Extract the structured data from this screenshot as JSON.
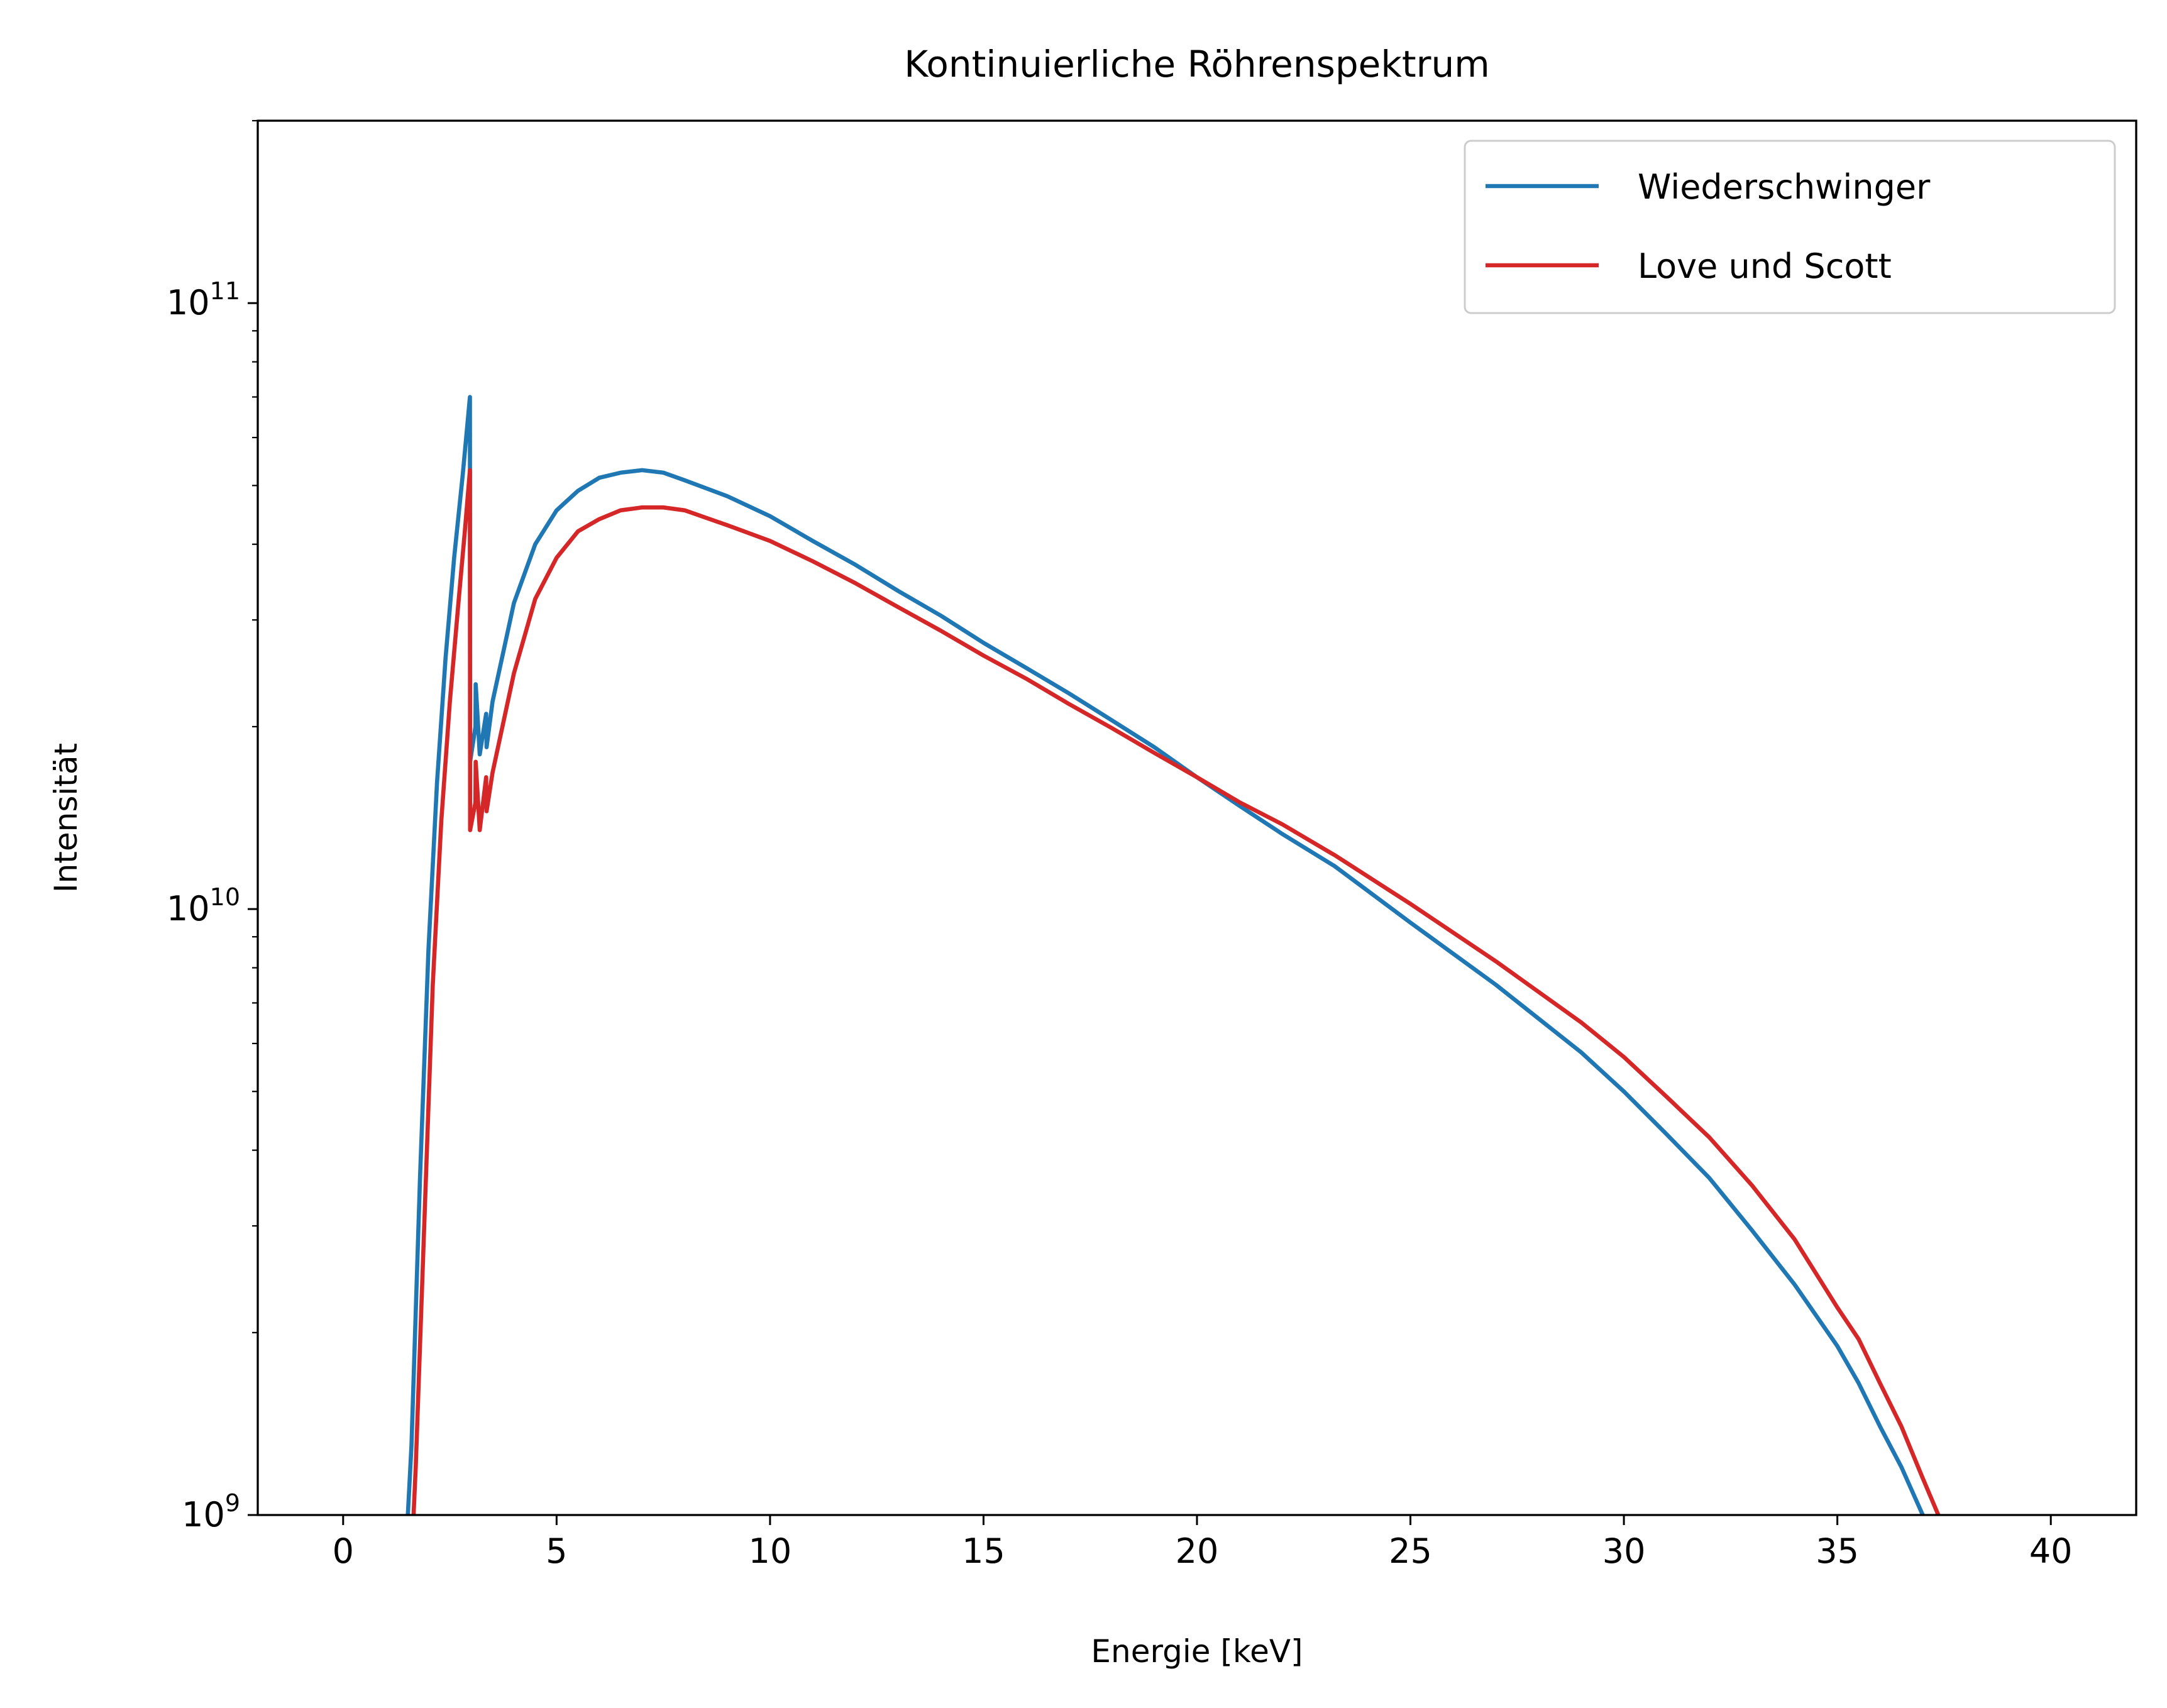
{
  "chart_data": {
    "type": "line",
    "title": "Kontinuierliche Röhrenspektrum",
    "xlabel": "Energie [keV]",
    "ylabel": "Intensität",
    "xlim": [
      -2,
      42
    ],
    "ylim": [
      1000000000,
      200000000000
    ],
    "yscale": "log",
    "grid": false,
    "legend_position": "top-right",
    "x_ticks": [
      0,
      5,
      10,
      15,
      20,
      25,
      30,
      35,
      40
    ],
    "x_tick_labels": [
      "0",
      "5",
      "10",
      "15",
      "20",
      "25",
      "30",
      "35",
      "40"
    ],
    "y_ticks": [
      {
        "value": 1000000000,
        "base": "10",
        "exp": "9"
      },
      {
        "value": 10000000000,
        "base": "10",
        "exp": "10"
      },
      {
        "value": 100000000000,
        "base": "10",
        "exp": "11"
      }
    ],
    "series": [
      {
        "name": "Wiederschwinger",
        "color": "#1f77b4",
        "x": [
          1.4,
          1.6,
          1.8,
          2.0,
          2.2,
          2.4,
          2.6,
          2.8,
          2.97,
          2.975,
          3.1,
          3.105,
          3.2,
          3.35,
          3.36,
          3.5,
          4.0,
          4.5,
          5.0,
          5.5,
          6.0,
          6.5,
          7.0,
          7.5,
          8.0,
          9.0,
          10.0,
          11.0,
          12.0,
          13.0,
          14.0,
          15.0,
          16.0,
          17.0,
          18.0,
          19.0,
          20.0,
          21.0,
          22.0,
          23.2,
          23.205,
          25.0,
          27.0,
          29.0,
          30.0,
          31.0,
          32.0,
          33.0,
          34.0,
          35.0,
          35.5,
          36.0,
          36.5,
          37.0,
          37.4
        ],
        "y": [
          700000000,
          1300000000,
          3600000000,
          8600000000,
          16200000000,
          26000000000,
          38000000000,
          52000000000,
          70000000000,
          17500000000,
          20000000000,
          23500000000,
          18000000000,
          21000000000,
          18500000000,
          22000000000,
          32000000000,
          40000000000,
          45500000000,
          49000000000,
          51500000000,
          52500000000,
          53000000000,
          52500000000,
          51000000000,
          48000000000,
          44500000000,
          40500000000,
          37000000000,
          33500000000,
          30500000000,
          27500000000,
          25000000000,
          22700000000,
          20500000000,
          18500000000,
          16500000000,
          14800000000,
          13300000000,
          11800000000,
          11800000000,
          9500000000,
          7500000000,
          5800000000,
          5000000000,
          4250000000,
          3600000000,
          2950000000,
          2400000000,
          1900000000,
          1650000000,
          1400000000,
          1200000000,
          1000000000,
          850000000
        ]
      },
      {
        "name": "Love und Scott",
        "color": "#d62728",
        "x": [
          1.55,
          1.7,
          1.9,
          2.1,
          2.3,
          2.5,
          2.7,
          2.85,
          2.97,
          2.975,
          3.1,
          3.105,
          3.2,
          3.35,
          3.36,
          3.5,
          4.0,
          4.5,
          5.0,
          5.5,
          6.0,
          6.5,
          7.0,
          7.5,
          8.0,
          9.0,
          10.0,
          11.0,
          12.0,
          13.0,
          14.0,
          15.0,
          16.0,
          17.0,
          18.0,
          19.0,
          20.0,
          21.0,
          22.0,
          23.2,
          23.205,
          25.0,
          27.0,
          29.0,
          30.0,
          31.0,
          32.0,
          33.0,
          34.0,
          35.0,
          35.5,
          36.0,
          36.5,
          37.0,
          37.5,
          37.9
        ],
        "y": [
          700000000,
          1200000000,
          3000000000,
          7500000000,
          14000000000,
          22000000000,
          32000000000,
          42000000000,
          53000000000,
          13500000000,
          15000000000,
          17500000000,
          13500000000,
          16500000000,
          14500000000,
          16800000000,
          24500000000,
          32500000000,
          38000000000,
          42000000000,
          44000000000,
          45500000000,
          46000000000,
          46000000000,
          45500000000,
          43000000000,
          40500000000,
          37500000000,
          34500000000,
          31500000000,
          28800000000,
          26200000000,
          24000000000,
          21800000000,
          19900000000,
          18100000000,
          16500000000,
          15000000000,
          13800000000,
          12300000000,
          12300000000,
          10200000000,
          8200000000,
          6500000000,
          5700000000,
          4900000000,
          4200000000,
          3500000000,
          2850000000,
          2200000000,
          1950000000,
          1650000000,
          1400000000,
          1150000000,
          950000000,
          800000000
        ]
      }
    ]
  }
}
